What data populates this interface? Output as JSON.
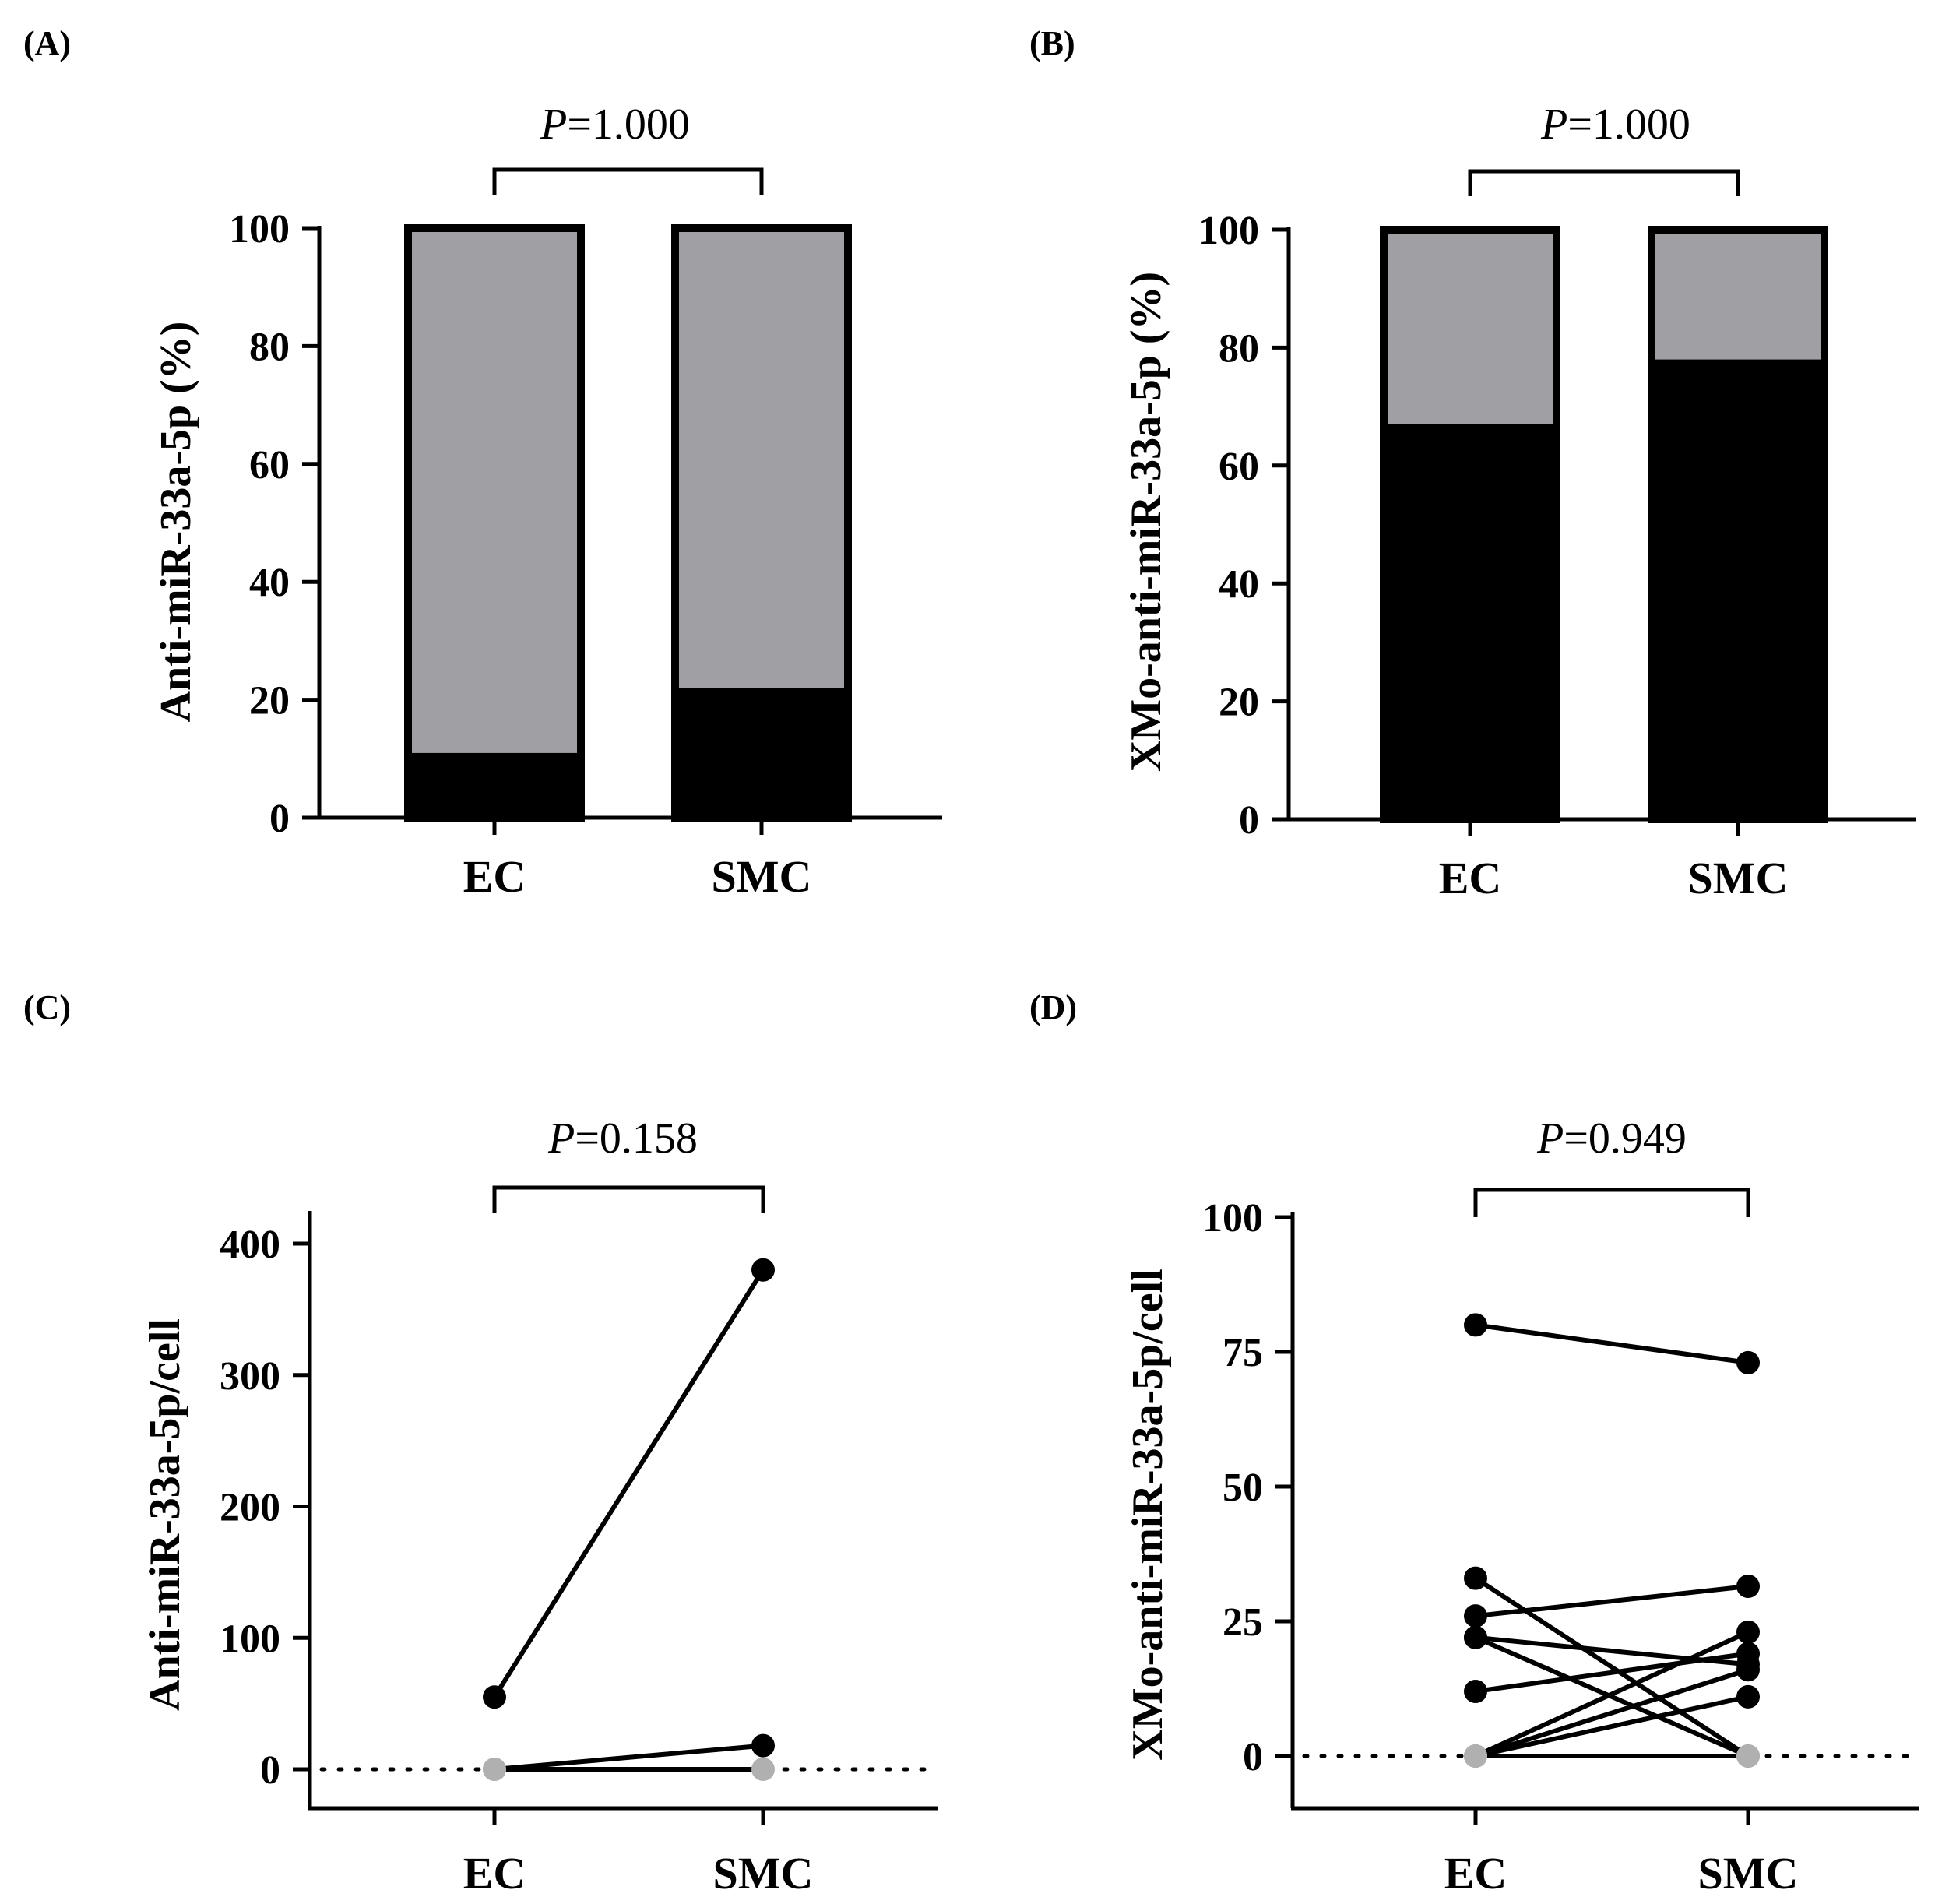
{
  "colors": {
    "black": "#000000",
    "gray": "#a0a0a4",
    "zero_point": "#b0b0b0"
  },
  "chart_data": [
    {
      "panel": "(A)",
      "type": "bar",
      "stacked": true,
      "categories": [
        "EC",
        "SMC"
      ],
      "series": [
        {
          "name": "black",
          "values": [
            11,
            22
          ]
        },
        {
          "name": "gray",
          "values": [
            89,
            78
          ]
        }
      ],
      "ylabel": "Anti-miR-33a-5p (%)",
      "ylim": [
        0,
        100
      ],
      "yticks": [
        0,
        20,
        40,
        60,
        80,
        100
      ],
      "p_label": "P",
      "p_value": "=1.000"
    },
    {
      "panel": "(B)",
      "type": "bar",
      "stacked": true,
      "categories": [
        "EC",
        "SMC"
      ],
      "series": [
        {
          "name": "black",
          "values": [
            67,
            78
          ]
        },
        {
          "name": "gray",
          "values": [
            33,
            22
          ]
        }
      ],
      "ylabel": "XMo-anti-miR-33a-5p (%)",
      "ylim": [
        0,
        100
      ],
      "yticks": [
        0,
        20,
        40,
        60,
        80,
        100
      ],
      "p_label": "P",
      "p_value": "=1.000"
    },
    {
      "panel": "(C)",
      "type": "line",
      "categories": [
        "EC",
        "SMC"
      ],
      "pairs": [
        [
          55,
          380
        ],
        [
          0,
          18
        ],
        [
          0,
          0
        ]
      ],
      "ylabel": "Anti-miR-33a-5p/cell",
      "ylim": [
        -30,
        420
      ],
      "yticks": [
        0,
        100,
        200,
        300,
        400
      ],
      "p_label": "P",
      "p_value": "=0.158"
    },
    {
      "panel": "(D)",
      "type": "line",
      "categories": [
        "EC",
        "SMC"
      ],
      "pairs": [
        [
          80,
          73
        ],
        [
          33,
          0
        ],
        [
          26,
          31.5
        ],
        [
          22,
          17
        ],
        [
          22,
          0
        ],
        [
          12,
          19
        ],
        [
          0,
          23
        ],
        [
          0,
          11
        ],
        [
          0,
          16
        ],
        [
          0,
          0
        ]
      ],
      "ylabel": "XMo-anti-miR-33a-5p/cell",
      "ylim": [
        -10,
        100
      ],
      "yticks": [
        0,
        25,
        50,
        75,
        100
      ],
      "p_label": "P",
      "p_value": "=0.949"
    }
  ]
}
